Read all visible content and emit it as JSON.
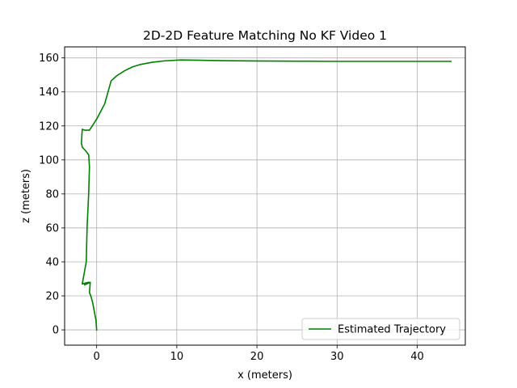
{
  "chart_data": {
    "type": "line",
    "title": "2D-2D Feature Matching No KF Video 1",
    "xlabel": "x (meters)",
    "ylabel": "z (meters)",
    "xlim": [
      -4,
      46
    ],
    "ylim": [
      -9,
      166.5
    ],
    "xticks": [
      0,
      10,
      20,
      30,
      40
    ],
    "yticks": [
      0,
      20,
      40,
      60,
      80,
      100,
      120,
      140,
      160
    ],
    "grid": true,
    "legend_position": "lower-right",
    "series": [
      {
        "name": "Estimated Trajectory",
        "color": "#008000",
        "x": [
          0.0,
          -0.1,
          -0.3,
          -0.5,
          -0.7,
          -0.9,
          -0.8,
          -1.5,
          -1.0,
          -1.8,
          -1.3,
          -1.2,
          -1.0,
          -0.9,
          -1.0,
          -1.4,
          -1.8,
          -1.9,
          -1.8,
          -1.5,
          -0.9,
          0.0,
          1.0,
          1.8,
          2.5,
          3.5,
          4.5,
          5.5,
          7.0,
          8.5,
          10.5,
          13.0,
          16.0,
          20.0,
          25.0,
          30.0,
          35.5,
          40.0,
          44.2
        ],
        "y": [
          0.0,
          6.0,
          11.0,
          16.0,
          19.5,
          22.0,
          28.0,
          26.5,
          28.0,
          27.0,
          40.0,
          60.0,
          80.0,
          96.0,
          103.0,
          105.5,
          107.5,
          110.0,
          118.0,
          117.5,
          117.5,
          124.0,
          133.0,
          146.5,
          149.5,
          152.5,
          154.8,
          156.2,
          157.5,
          158.3,
          158.8,
          158.6,
          158.4,
          158.2,
          158.1,
          158.0,
          158.0,
          158.0,
          158.0
        ]
      }
    ]
  }
}
